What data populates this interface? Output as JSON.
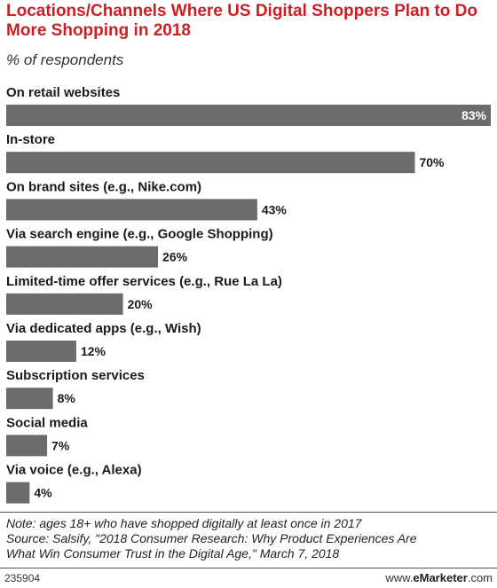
{
  "header": {
    "title": "Locations/Channels Where US Digital Shoppers Plan to Do More Shopping in 2018",
    "subtitle": "% of respondents"
  },
  "chart_data": {
    "type": "bar",
    "orientation": "horizontal",
    "categories": [
      "On retail websites",
      "In-store",
      "On brand sites (e.g., Nike.com)",
      "Via search engine (e.g., Google Shopping)",
      "Limited-time offer services (e.g., Rue La La)",
      "Via dedicated apps (e.g., Wish)",
      "Subscription services",
      "Social media",
      "Via voice (e.g., Alexa)"
    ],
    "values": [
      83,
      70,
      43,
      26,
      20,
      12,
      8,
      7,
      4
    ],
    "value_labels": [
      "83%",
      "70%",
      "43%",
      "26%",
      "20%",
      "12%",
      "8%",
      "7%",
      "4%"
    ],
    "unit": "%",
    "xlim": [
      0,
      83
    ],
    "bar_color": "#6b6b6b",
    "grid": false,
    "legend": "none"
  },
  "footer": {
    "note": "Note: ages 18+ who have shopped digitally at least once in 2017",
    "source_line1": "Source: Salsify, \"2018 Consumer Research: Why Product Experiences Are",
    "source_line2": "What Win Consumer Trust in the Digital Age,\" March 7, 2018",
    "chart_id": "235904",
    "brand_prefix": "www.",
    "brand_name": "eMarketer",
    "brand_suffix": ".com"
  }
}
